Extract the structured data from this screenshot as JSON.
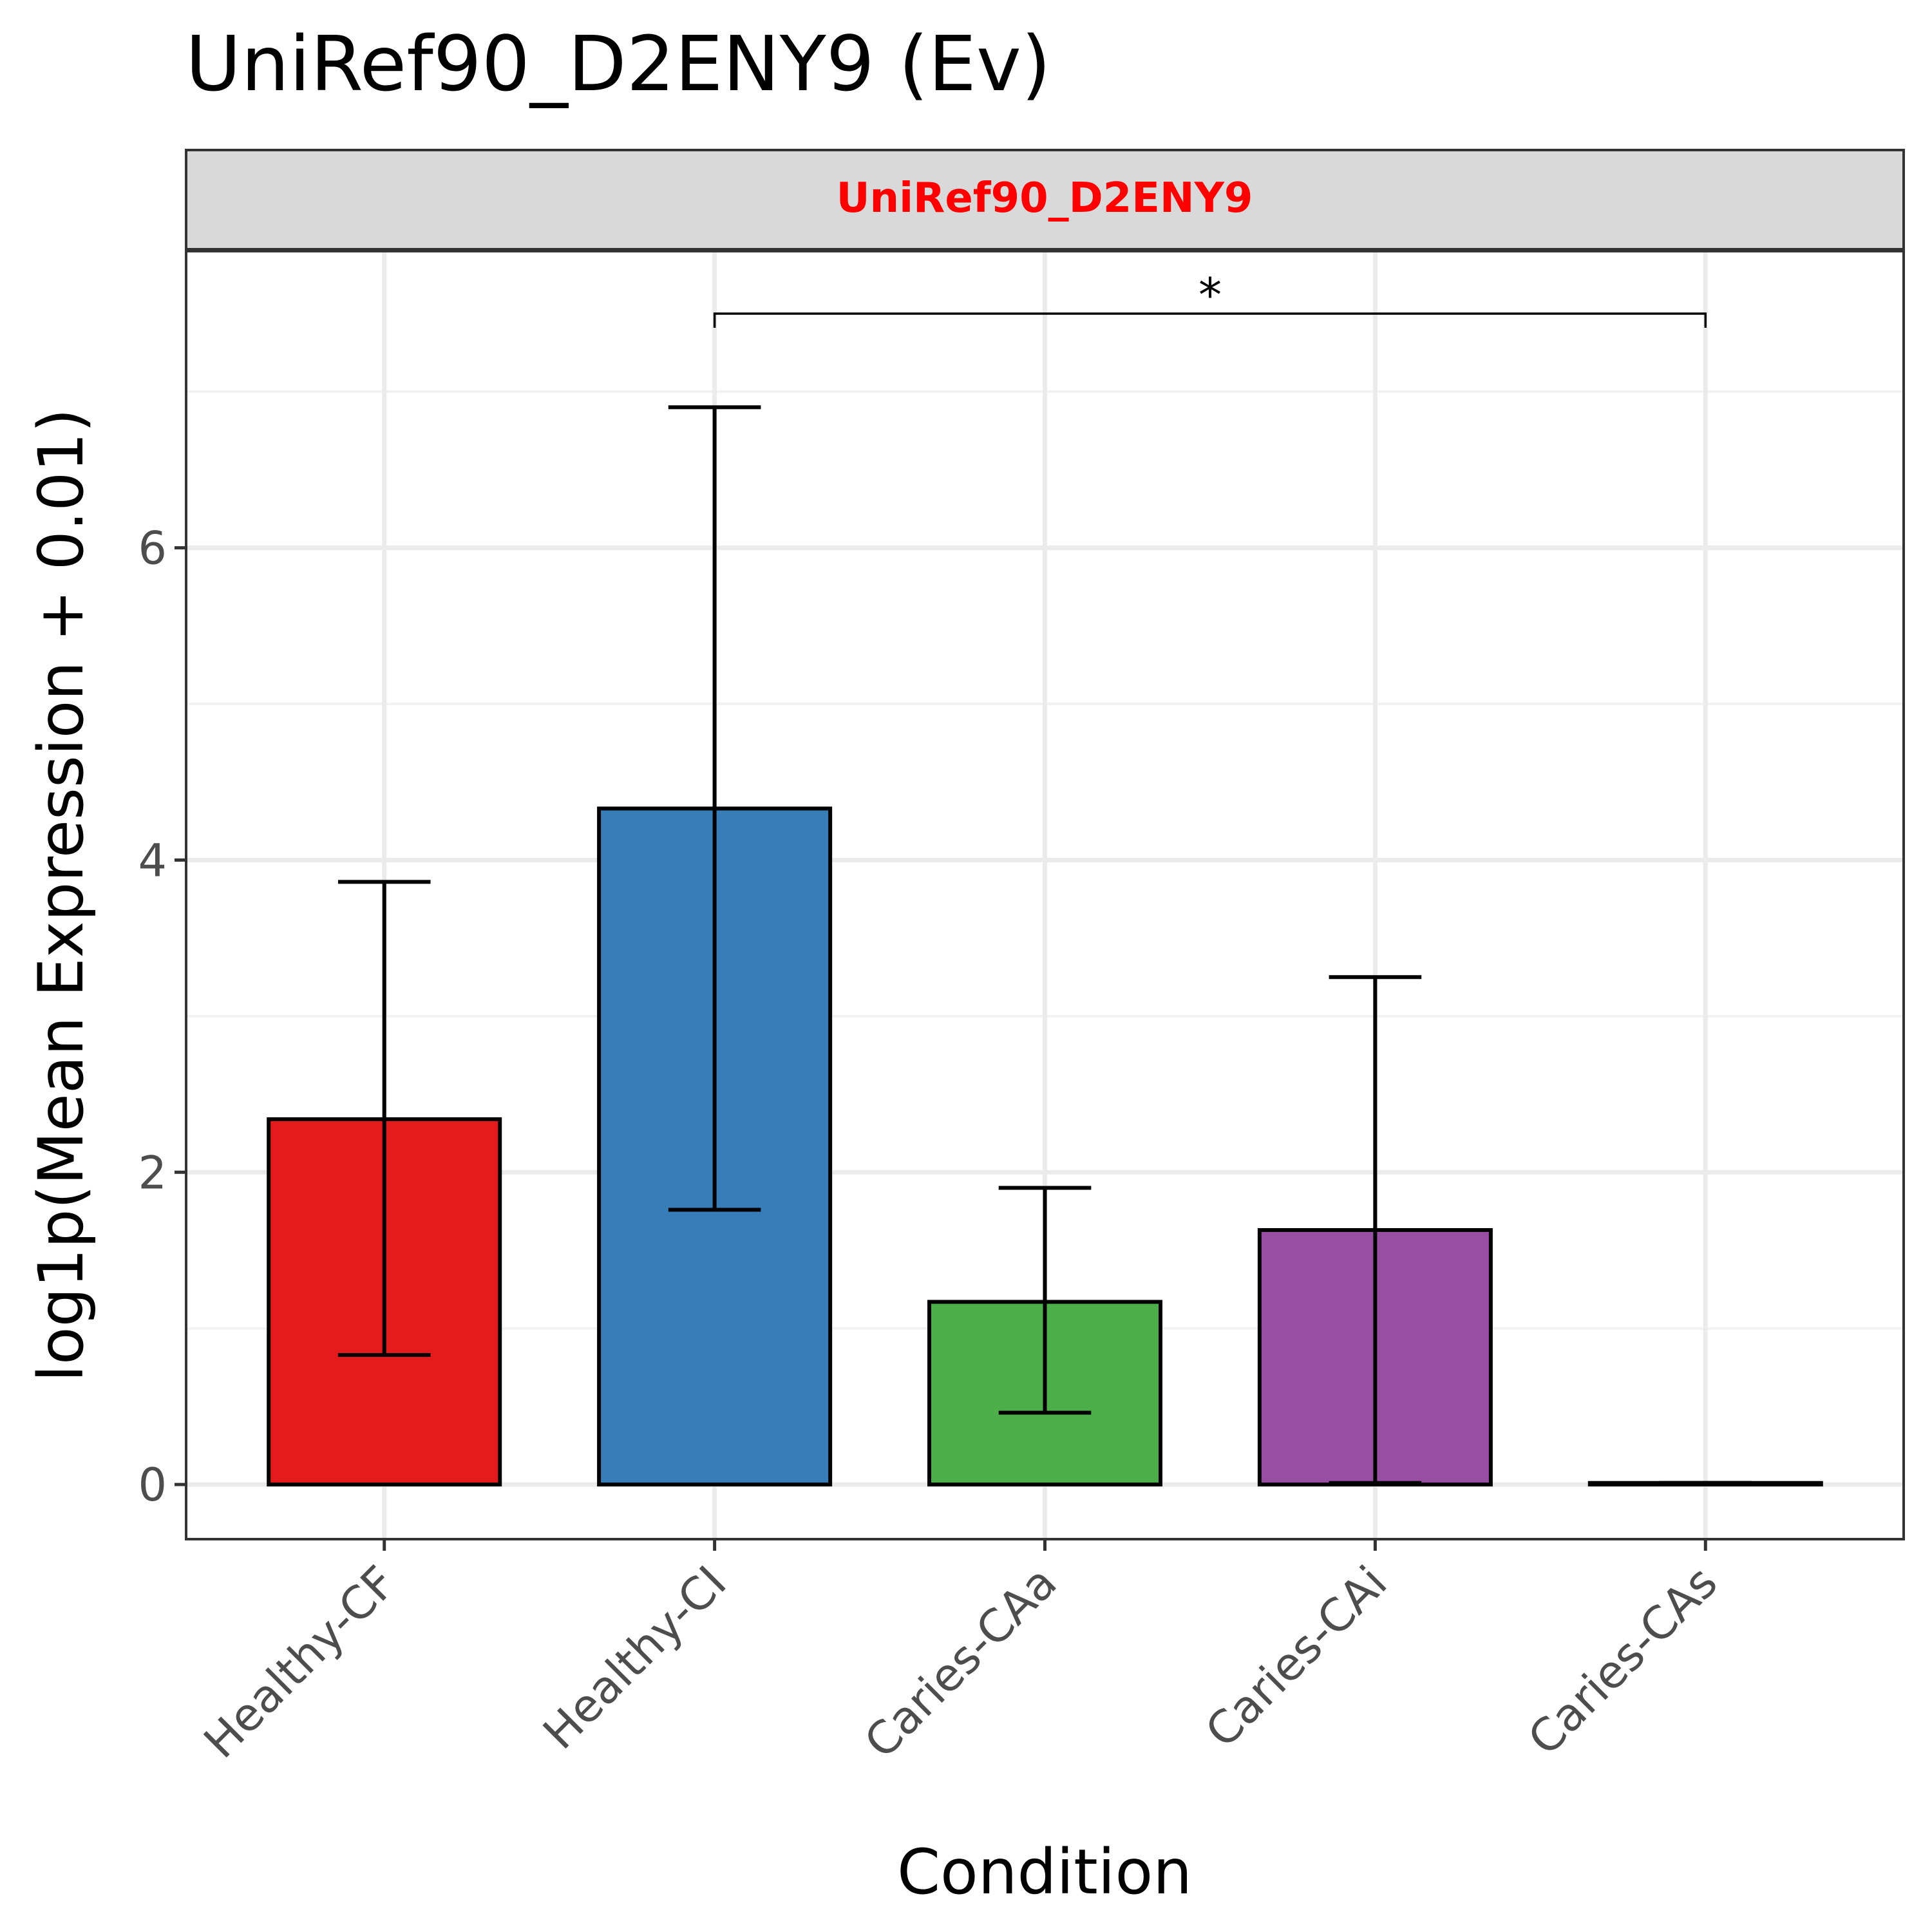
{
  "chart_data": {
    "type": "bar",
    "title": "UniRef90_D2ENY9 (Ev)",
    "facet_label": "UniRef90_D2ENY9",
    "xlabel": "Condition",
    "ylabel": "log1p(Mean Expression + 0.01)",
    "categories": [
      "Healthy-CF",
      "Healthy-CI",
      "Caries-CAa",
      "Caries-CAi",
      "Caries-CAs"
    ],
    "values": [
      2.34,
      4.33,
      1.17,
      1.63,
      0.01
    ],
    "error_low": [
      0.83,
      1.76,
      0.46,
      0.01,
      0.01
    ],
    "error_high": [
      3.86,
      6.9,
      1.9,
      3.25,
      0.01
    ],
    "colors": [
      "#E41A1C",
      "#377EB8",
      "#4DAF4A",
      "#984EA3",
      "#FF7F00"
    ],
    "ylim": [
      -0.35,
      7.9
    ],
    "yticks": [
      0,
      2,
      4,
      6
    ],
    "grid": true,
    "legend": "none",
    "significance": [
      {
        "from": "Healthy-CI",
        "to": "Caries-CAs",
        "y": 7.5,
        "label": "*"
      }
    ]
  },
  "style": {
    "facet_label_color": "#FF0000",
    "strip_fill": "#D9D9D9",
    "panel_border": "#333333",
    "grid_major": "#EBEBEB",
    "grid_minor": "#F2F2F2"
  }
}
